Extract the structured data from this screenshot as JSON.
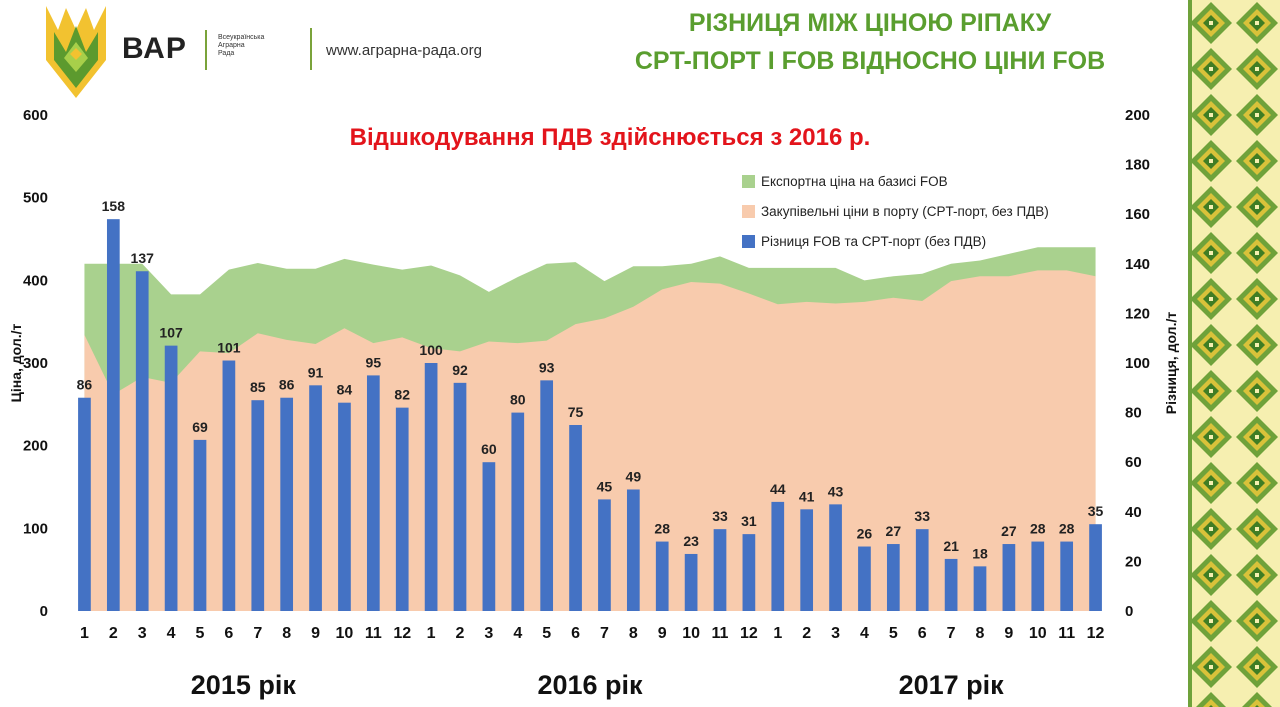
{
  "header": {
    "brand": "ВАР",
    "brand_sub_lines": [
      "Всеукраїнська",
      "Аграрна",
      "Рада"
    ],
    "website": "www.аграрна-рада.org",
    "title_lines": [
      "РІЗНИЦЯ МІЖ ЦІНОЮ РІПАКУ",
      "CPT-ПОРТ І FOB ВІДНОСНО ЦІНИ FOB"
    ],
    "logo_icon": "trident-wheat-icon",
    "ornament_icon": "embroidery-ornament-icon"
  },
  "colors": {
    "fob": "#a9d18e",
    "cpt": "#f8cbad",
    "diff": "#4472c4",
    "title": "#5a9e2f",
    "note": "#e3141b"
  },
  "chart_data": {
    "type": "bar",
    "note": "Відшкодування ПДВ здійснюється з 2016 р.",
    "ylabel": "Ціна, дол./т",
    "y2label": "Різниця, дол./т",
    "ylim": [
      0,
      600
    ],
    "y2lim": [
      0,
      200
    ],
    "yticks": [
      0,
      100,
      200,
      300,
      400,
      500,
      600
    ],
    "y2ticks": [
      0,
      20,
      40,
      60,
      80,
      100,
      120,
      140,
      160,
      180,
      200
    ],
    "grid": false,
    "legend_position": "top-right",
    "categories": [
      "1",
      "2",
      "3",
      "4",
      "5",
      "6",
      "7",
      "8",
      "9",
      "10",
      "11",
      "12",
      "1",
      "2",
      "3",
      "4",
      "5",
      "6",
      "7",
      "8",
      "9",
      "10",
      "11",
      "12",
      "1",
      "2",
      "3",
      "4",
      "5",
      "6",
      "7",
      "8",
      "9",
      "10",
      "11",
      "12"
    ],
    "year_labels": [
      {
        "label": "2015 рік",
        "center_index": 5.5
      },
      {
        "label": "2016 рік",
        "center_index": 17.5
      },
      {
        "label": "2017 рік",
        "center_index": 30
      }
    ],
    "series": [
      {
        "name": "Експортна ціна на базисі FOB",
        "type": "area",
        "axis": "left",
        "values": [
          420,
          420,
          420,
          383,
          383,
          413,
          421,
          414,
          414,
          426,
          419,
          413,
          418,
          406,
          386,
          404,
          420,
          422,
          399,
          417,
          417,
          420,
          429,
          415,
          415,
          415,
          415,
          400,
          405,
          408,
          420,
          424,
          432,
          440,
          440,
          440
        ]
      },
      {
        "name": "Закупівельні ціни в порту (CPT-порт, без ПДВ)",
        "type": "area",
        "axis": "left",
        "values": [
          334,
          262,
          283,
          276,
          314,
          312,
          336,
          328,
          323,
          342,
          324,
          331,
          318,
          314,
          326,
          324,
          327,
          347,
          354,
          368,
          389,
          398,
          396,
          384,
          371,
          374,
          372,
          374,
          379,
          375,
          399,
          405,
          405,
          412,
          412,
          405
        ]
      },
      {
        "name": "Різниця FOB та CPT-порт (без ПДВ)",
        "type": "bar",
        "axis": "right",
        "values": [
          86,
          158,
          137,
          107,
          69,
          101,
          85,
          86,
          91,
          84,
          95,
          82,
          100,
          92,
          60,
          80,
          93,
          75,
          45,
          49,
          28,
          23,
          33,
          31,
          44,
          41,
          43,
          26,
          27,
          33,
          21,
          18,
          27,
          28,
          28,
          35
        ]
      }
    ]
  }
}
